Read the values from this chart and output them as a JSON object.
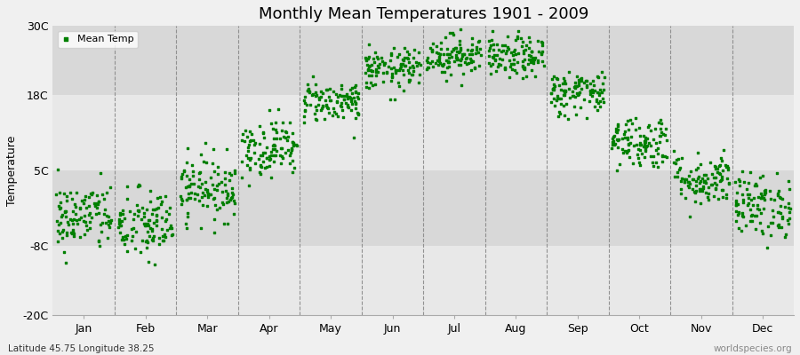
{
  "title": "Monthly Mean Temperatures 1901 - 2009",
  "ylabel": "Temperature",
  "xlabel_bottom_left": "Latitude 45.75 Longitude 38.25",
  "xlabel_bottom_right": "worldspecies.org",
  "legend_label": "Mean Temp",
  "marker_color": "#008000",
  "background_color": "#f0f0f0",
  "band_colors": [
    "#e8e8e8",
    "#d8d8d8"
  ],
  "yticks": [
    -20,
    -8,
    5,
    18,
    30
  ],
  "ytick_labels": [
    "-20C",
    "-8C",
    "5C",
    "18C",
    "30C"
  ],
  "ylim": [
    -20,
    30
  ],
  "months": [
    "Jan",
    "Feb",
    "Mar",
    "Apr",
    "May",
    "Jun",
    "Jul",
    "Aug",
    "Sep",
    "Oct",
    "Nov",
    "Dec"
  ],
  "num_years": 109,
  "seed": 42,
  "mean_temps": [
    -3.0,
    -4.5,
    2.0,
    9.0,
    17.0,
    22.5,
    25.0,
    24.5,
    18.5,
    10.0,
    3.5,
    -1.0
  ],
  "std_temps": [
    3.0,
    3.2,
    2.8,
    2.5,
    1.8,
    1.8,
    1.8,
    1.8,
    2.0,
    2.3,
    2.3,
    2.8
  ]
}
